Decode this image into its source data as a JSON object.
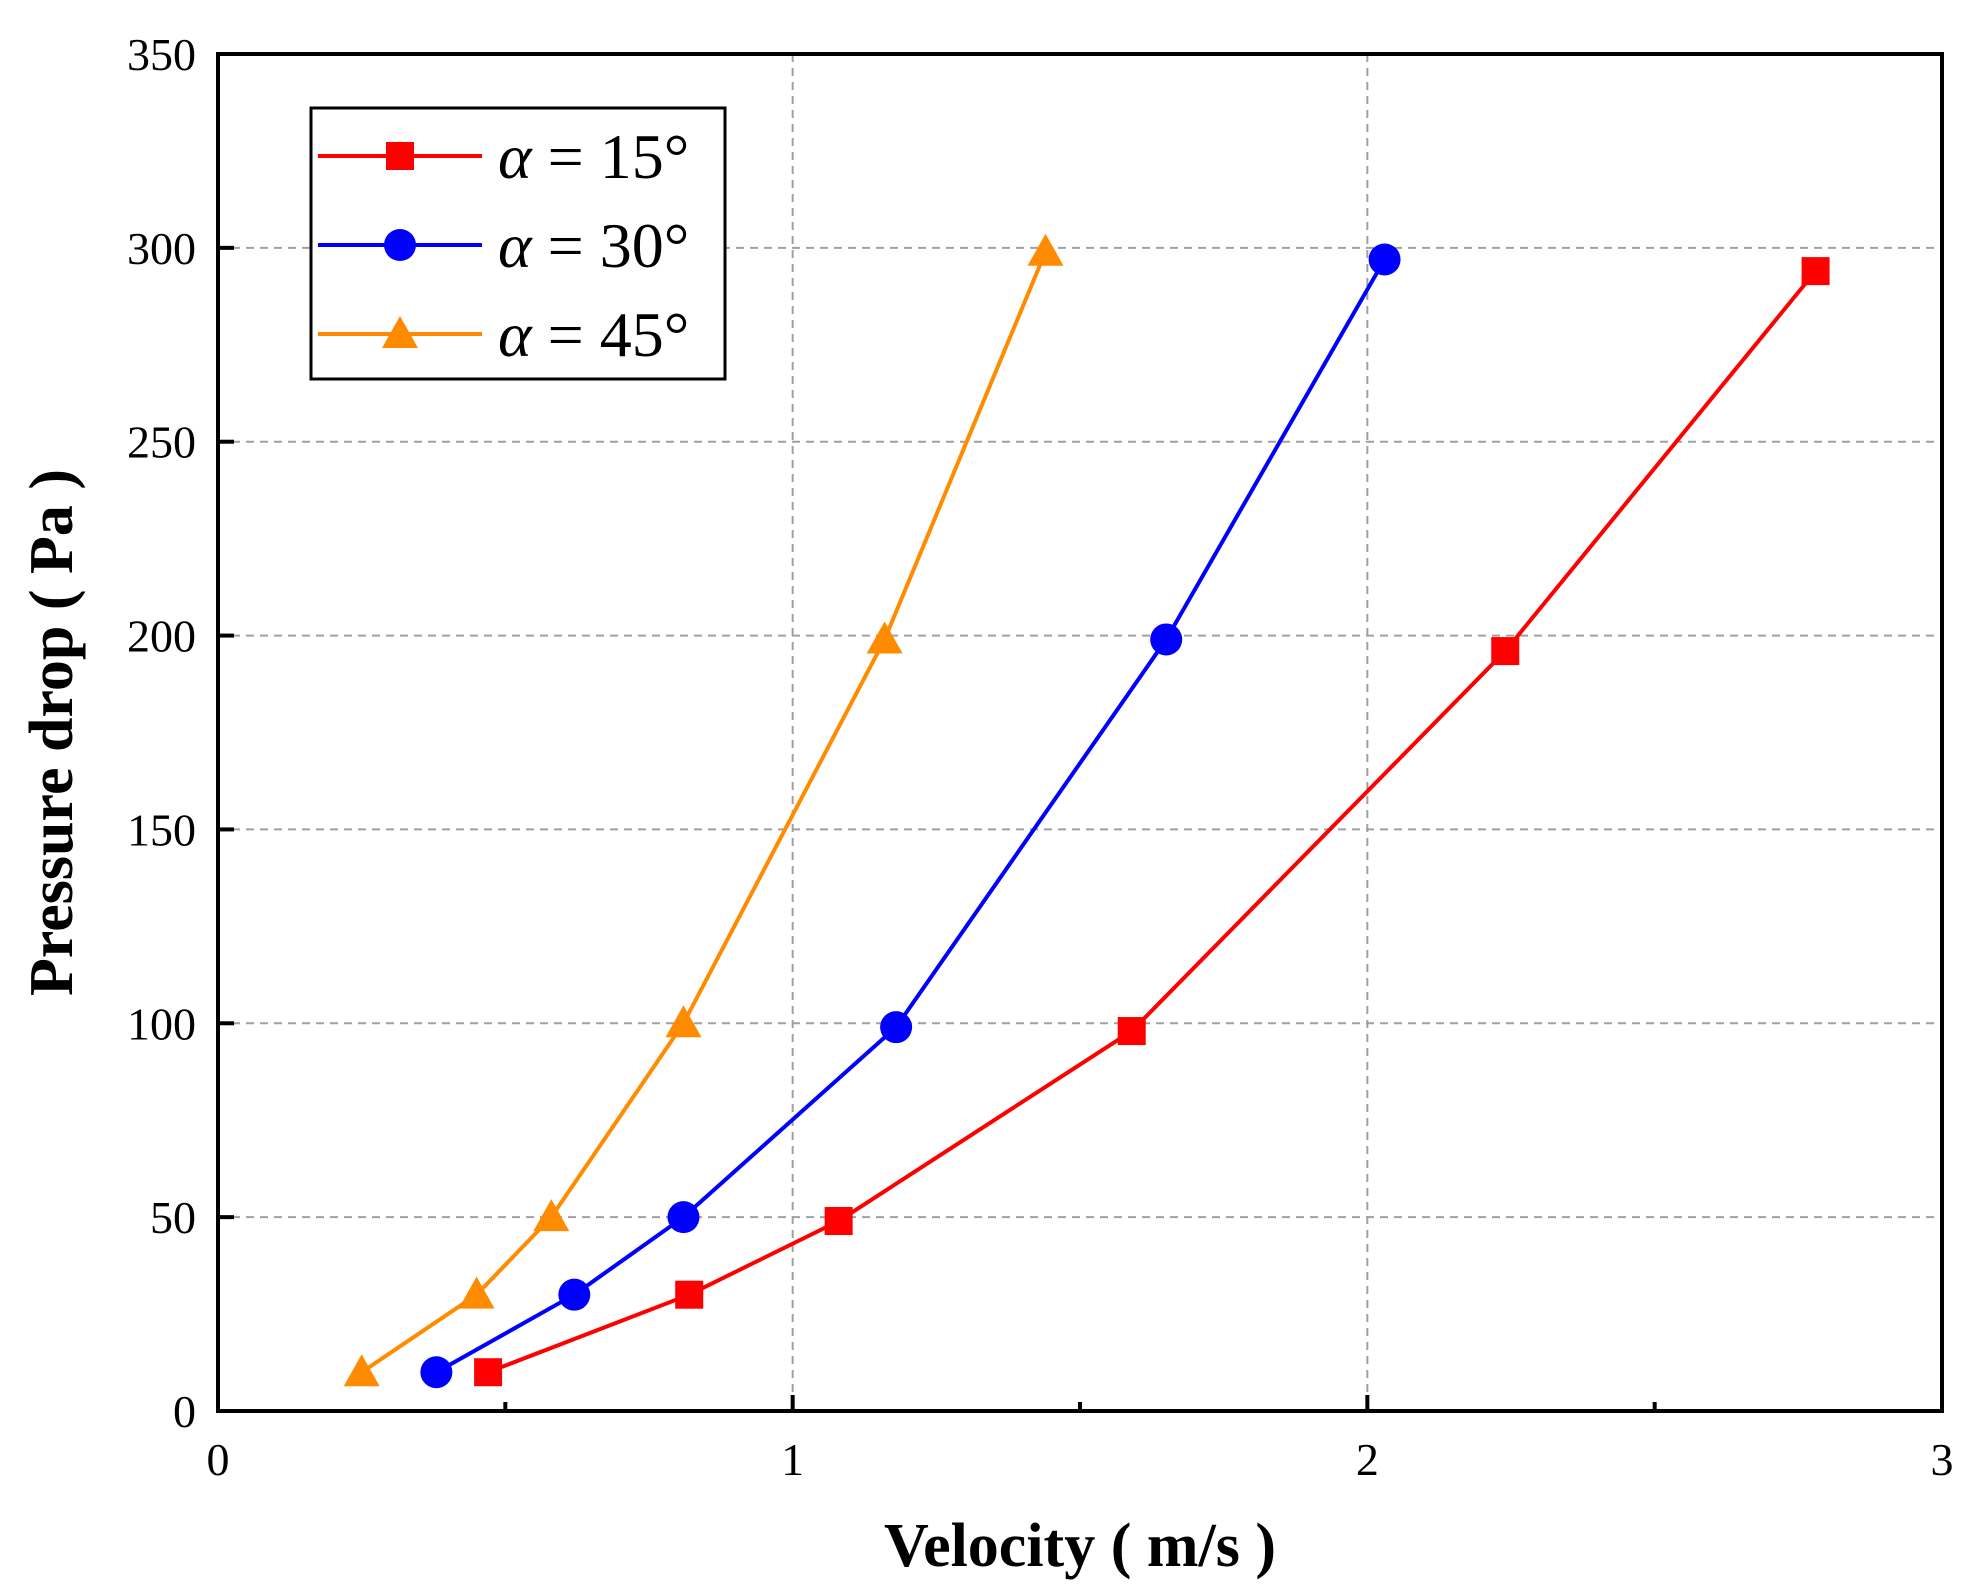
{
  "chart_data": {
    "type": "line",
    "title": "",
    "xlabel": "Velocity ( m/s )",
    "ylabel": "Pressure drop ( Pa )",
    "xlim": [
      0,
      3
    ],
    "ylim": [
      0,
      350
    ],
    "xticks": [
      0,
      1,
      2,
      3
    ],
    "yticks": [
      0,
      50,
      100,
      150,
      200,
      250,
      300,
      350
    ],
    "xtick_labels": [
      "0",
      "1",
      "2",
      "3"
    ],
    "ytick_labels": [
      "0",
      "50",
      "100",
      "150",
      "200",
      "250",
      "300",
      "350"
    ],
    "x_minor_ticks": [
      0.5,
      1.5,
      2.5
    ],
    "grid": true,
    "legend_position": "top-left",
    "series": [
      {
        "name": "α = 15°",
        "legend_symbol": "α",
        "legend_rest": " = 15°",
        "marker": "square",
        "color": "#ff0000",
        "x": [
          0.47,
          0.82,
          1.08,
          1.59,
          2.24,
          2.78
        ],
        "y": [
          10,
          30,
          49,
          98,
          196,
          294
        ]
      },
      {
        "name": "α = 30°",
        "legend_symbol": "α",
        "legend_rest": " = 30°",
        "marker": "circle",
        "color": "#0000ff",
        "x": [
          0.38,
          0.62,
          0.81,
          1.18,
          1.65,
          2.03
        ],
        "y": [
          10,
          30,
          50,
          99,
          199,
          297
        ]
      },
      {
        "name": "α = 45°",
        "legend_symbol": "α",
        "legend_rest": " = 45°",
        "marker": "triangle",
        "color": "#ff8c00",
        "x": [
          0.25,
          0.45,
          0.58,
          0.81,
          1.16,
          1.44
        ],
        "y": [
          10,
          30,
          50,
          100,
          199,
          299
        ]
      }
    ]
  }
}
